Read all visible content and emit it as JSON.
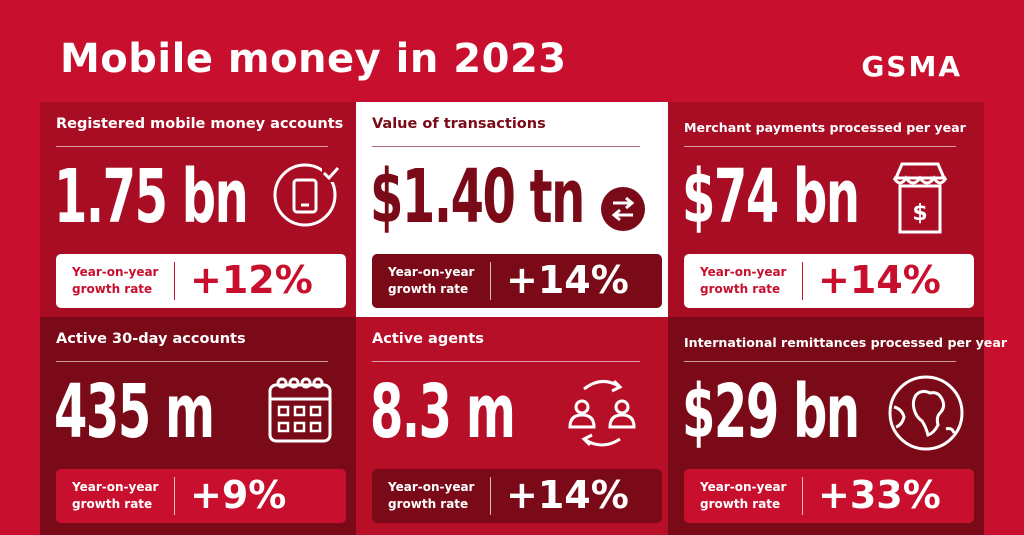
{
  "header": {
    "title": "Mobile money in 2023",
    "logo": "GSMA"
  },
  "colors": {
    "brand_red": "#c8102e",
    "dark_red": "#7a0a17",
    "white": "#ffffff"
  },
  "growth_label": "Year-on-year growth rate",
  "stats": [
    {
      "label": "Registered mobile money accounts",
      "value": "1.75 bn",
      "growth": "+12%",
      "icon": "phone-check-icon"
    },
    {
      "label": "Value of transactions",
      "value": "$1.40 tn",
      "growth": "+14%",
      "icon": "transfer-arrows-icon"
    },
    {
      "label": "Merchant payments processed per year",
      "value": "$74 bn",
      "growth": "+14%",
      "icon": "shop-dollar-icon"
    },
    {
      "label": "Active 30-day accounts",
      "value": "435 m",
      "growth": "+9%",
      "icon": "calendar-icon"
    },
    {
      "label": "Active agents",
      "value": "8.3 m",
      "growth": "+14%",
      "icon": "agents-cycle-icon"
    },
    {
      "label": "International remittances processed per year",
      "value": "$29 bn",
      "growth": "+33%",
      "icon": "globe-icon"
    }
  ]
}
